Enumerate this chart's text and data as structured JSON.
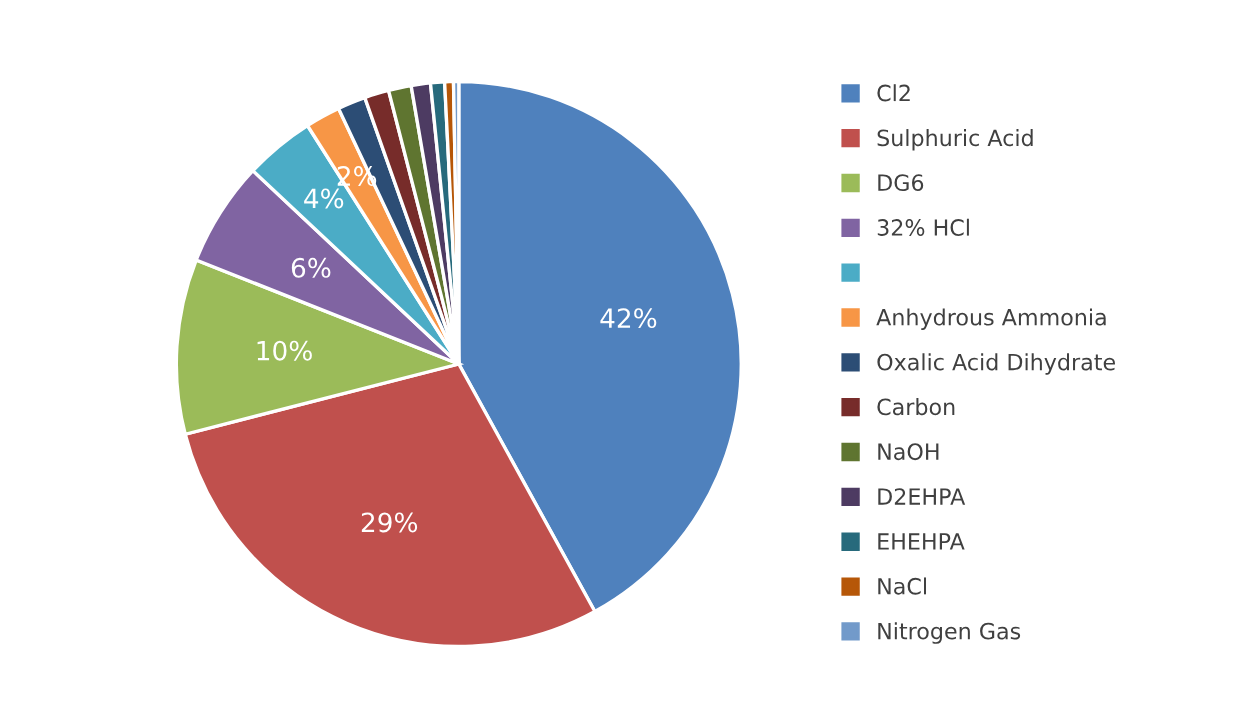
{
  "chart_data": {
    "type": "pie",
    "categories": [
      "Cl2",
      "Sulphuric Acid",
      "DG6",
      "32% HCl",
      null,
      "Anhydrous Ammonia",
      "Oxalic Acid Dihydrate",
      "Carbon",
      "NaOH",
      "D2EHPA",
      "EHEHPA",
      "NaCl",
      "Nitrogen Gas"
    ],
    "values": [
      42,
      29,
      10,
      6,
      4,
      2,
      1.6,
      1.4,
      1.3,
      1.1,
      0.8,
      0.5,
      0.3
    ],
    "value_labels": [
      "42%",
      "29%",
      "10%",
      "6%",
      "4%",
      "2%",
      null,
      null,
      null,
      null,
      null,
      null,
      null
    ],
    "colors": [
      "#4f81bd",
      "#c0504d",
      "#9bbb59",
      "#8064a2",
      "#4bacc6",
      "#f79646",
      "#2c4d75",
      "#772c2a",
      "#5f7530",
      "#4d3b62",
      "#276a7c",
      "#b65708",
      "#729aca"
    ],
    "legend": "right"
  }
}
